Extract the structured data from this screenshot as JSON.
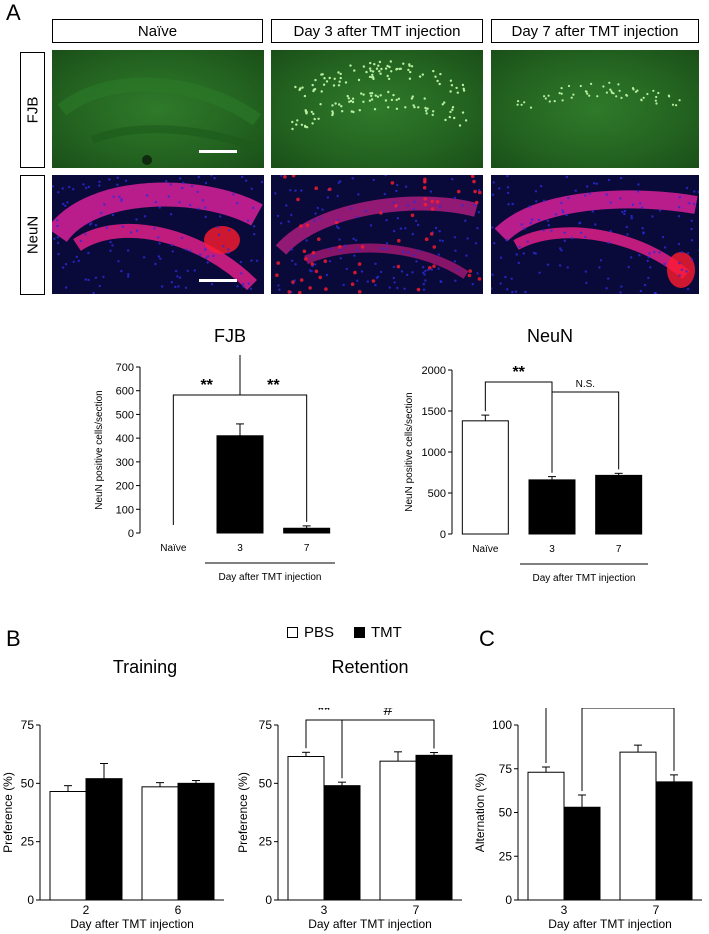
{
  "panel_letters": {
    "a": "A",
    "b": "B",
    "c": "C"
  },
  "panel_a": {
    "column_headers": [
      "Naïve",
      "Day 3 after TMT injection",
      "Day 7 after TMT injection"
    ],
    "row_labels": [
      "FJB",
      "NeuN"
    ],
    "colors": {
      "fjb_bg": "#236320",
      "fjb_dot": "#b8f0a0",
      "neun_bg": "#0a0a3a",
      "neun_cell": "#e0208a",
      "neun_red": "#ff1a30",
      "nuclei": "#2a2ae0"
    }
  },
  "chart_data": [
    {
      "type": "bar",
      "title": "FJB",
      "ylabel": "NeuN positive cells/section",
      "xlabel": "Day after TMT injection",
      "categories": [
        "Naïve",
        "3",
        "7"
      ],
      "values": [
        0,
        410,
        20
      ],
      "errors": [
        0,
        50,
        10
      ],
      "fills": [
        "#ffffff",
        "#000000",
        "#000000"
      ],
      "ylim": [
        0,
        700
      ],
      "yticks": [
        0,
        100,
        200,
        300,
        400,
        500,
        600,
        700
      ],
      "annotations": [
        {
          "text": "**",
          "from": 0,
          "to": 1
        },
        {
          "text": "**",
          "from": 1,
          "to": 2
        }
      ]
    },
    {
      "type": "bar",
      "title": "NeuN",
      "ylabel": "NeuN positive cells/section",
      "xlabel": "Day after TMT injection",
      "categories": [
        "Naïve",
        "3",
        "7"
      ],
      "values": [
        1380,
        660,
        715
      ],
      "errors": [
        70,
        40,
        25
      ],
      "fills": [
        "#ffffff",
        "#000000",
        "#000000"
      ],
      "ylim": [
        0,
        2000
      ],
      "yticks": [
        0,
        500,
        1000,
        1500,
        2000
      ],
      "annotations": [
        {
          "text": "**",
          "from": 0,
          "to": 1
        },
        {
          "text": "N.S.",
          "from": 1,
          "to": 2
        }
      ]
    },
    {
      "type": "bar",
      "title": "Training",
      "ylabel": "Preference (%)",
      "xlabel": "Day after TMT injection",
      "categories": [
        "2",
        "6"
      ],
      "series": [
        {
          "name": "PBS",
          "values": [
            46.5,
            48.5
          ],
          "errors": [
            2.5,
            1.8
          ]
        },
        {
          "name": "TMT",
          "values": [
            52,
            50
          ],
          "errors": [
            6.5,
            1.2
          ]
        }
      ],
      "ylim": [
        0,
        75
      ],
      "yticks": [
        0,
        25,
        50,
        75
      ],
      "annotations": []
    },
    {
      "type": "bar",
      "title": "Retention",
      "ylabel": "Preference (%)",
      "xlabel": "Day after TMT injection",
      "categories": [
        "3",
        "7"
      ],
      "series": [
        {
          "name": "PBS",
          "values": [
            61.5,
            59.5
          ],
          "errors": [
            1.8,
            4
          ]
        },
        {
          "name": "TMT",
          "values": [
            49,
            62
          ],
          "errors": [
            1.5,
            1.2
          ]
        }
      ],
      "ylim": [
        0,
        75
      ],
      "yticks": [
        0,
        25,
        50,
        75
      ],
      "annotations": [
        {
          "text": "**",
          "from": [
            0,
            0
          ],
          "to": [
            0,
            1
          ]
        },
        {
          "text": "#",
          "from": [
            0,
            1
          ],
          "to": [
            1,
            1
          ]
        }
      ]
    },
    {
      "type": "bar",
      "title": "",
      "ylabel": "Alternation (%)",
      "xlabel": "Day after TMT injection",
      "categories": [
        "3",
        "7"
      ],
      "series": [
        {
          "name": "PBS",
          "values": [
            73,
            84.5
          ],
          "errors": [
            3,
            4
          ]
        },
        {
          "name": "TMT",
          "values": [
            53,
            67.5
          ],
          "errors": [
            7,
            4
          ]
        }
      ],
      "ylim": [
        0,
        100
      ],
      "yticks": [
        0,
        25,
        50,
        75,
        100
      ],
      "annotations": [
        {
          "text": "**",
          "from": [
            0,
            0
          ],
          "to": [
            0,
            1
          ]
        },
        {
          "text": "#",
          "from": [
            0,
            1
          ],
          "to": [
            1,
            1
          ]
        }
      ]
    }
  ],
  "legend": {
    "items": [
      {
        "name": "PBS",
        "fill": "#ffffff"
      },
      {
        "name": "TMT",
        "fill": "#000000"
      }
    ]
  }
}
